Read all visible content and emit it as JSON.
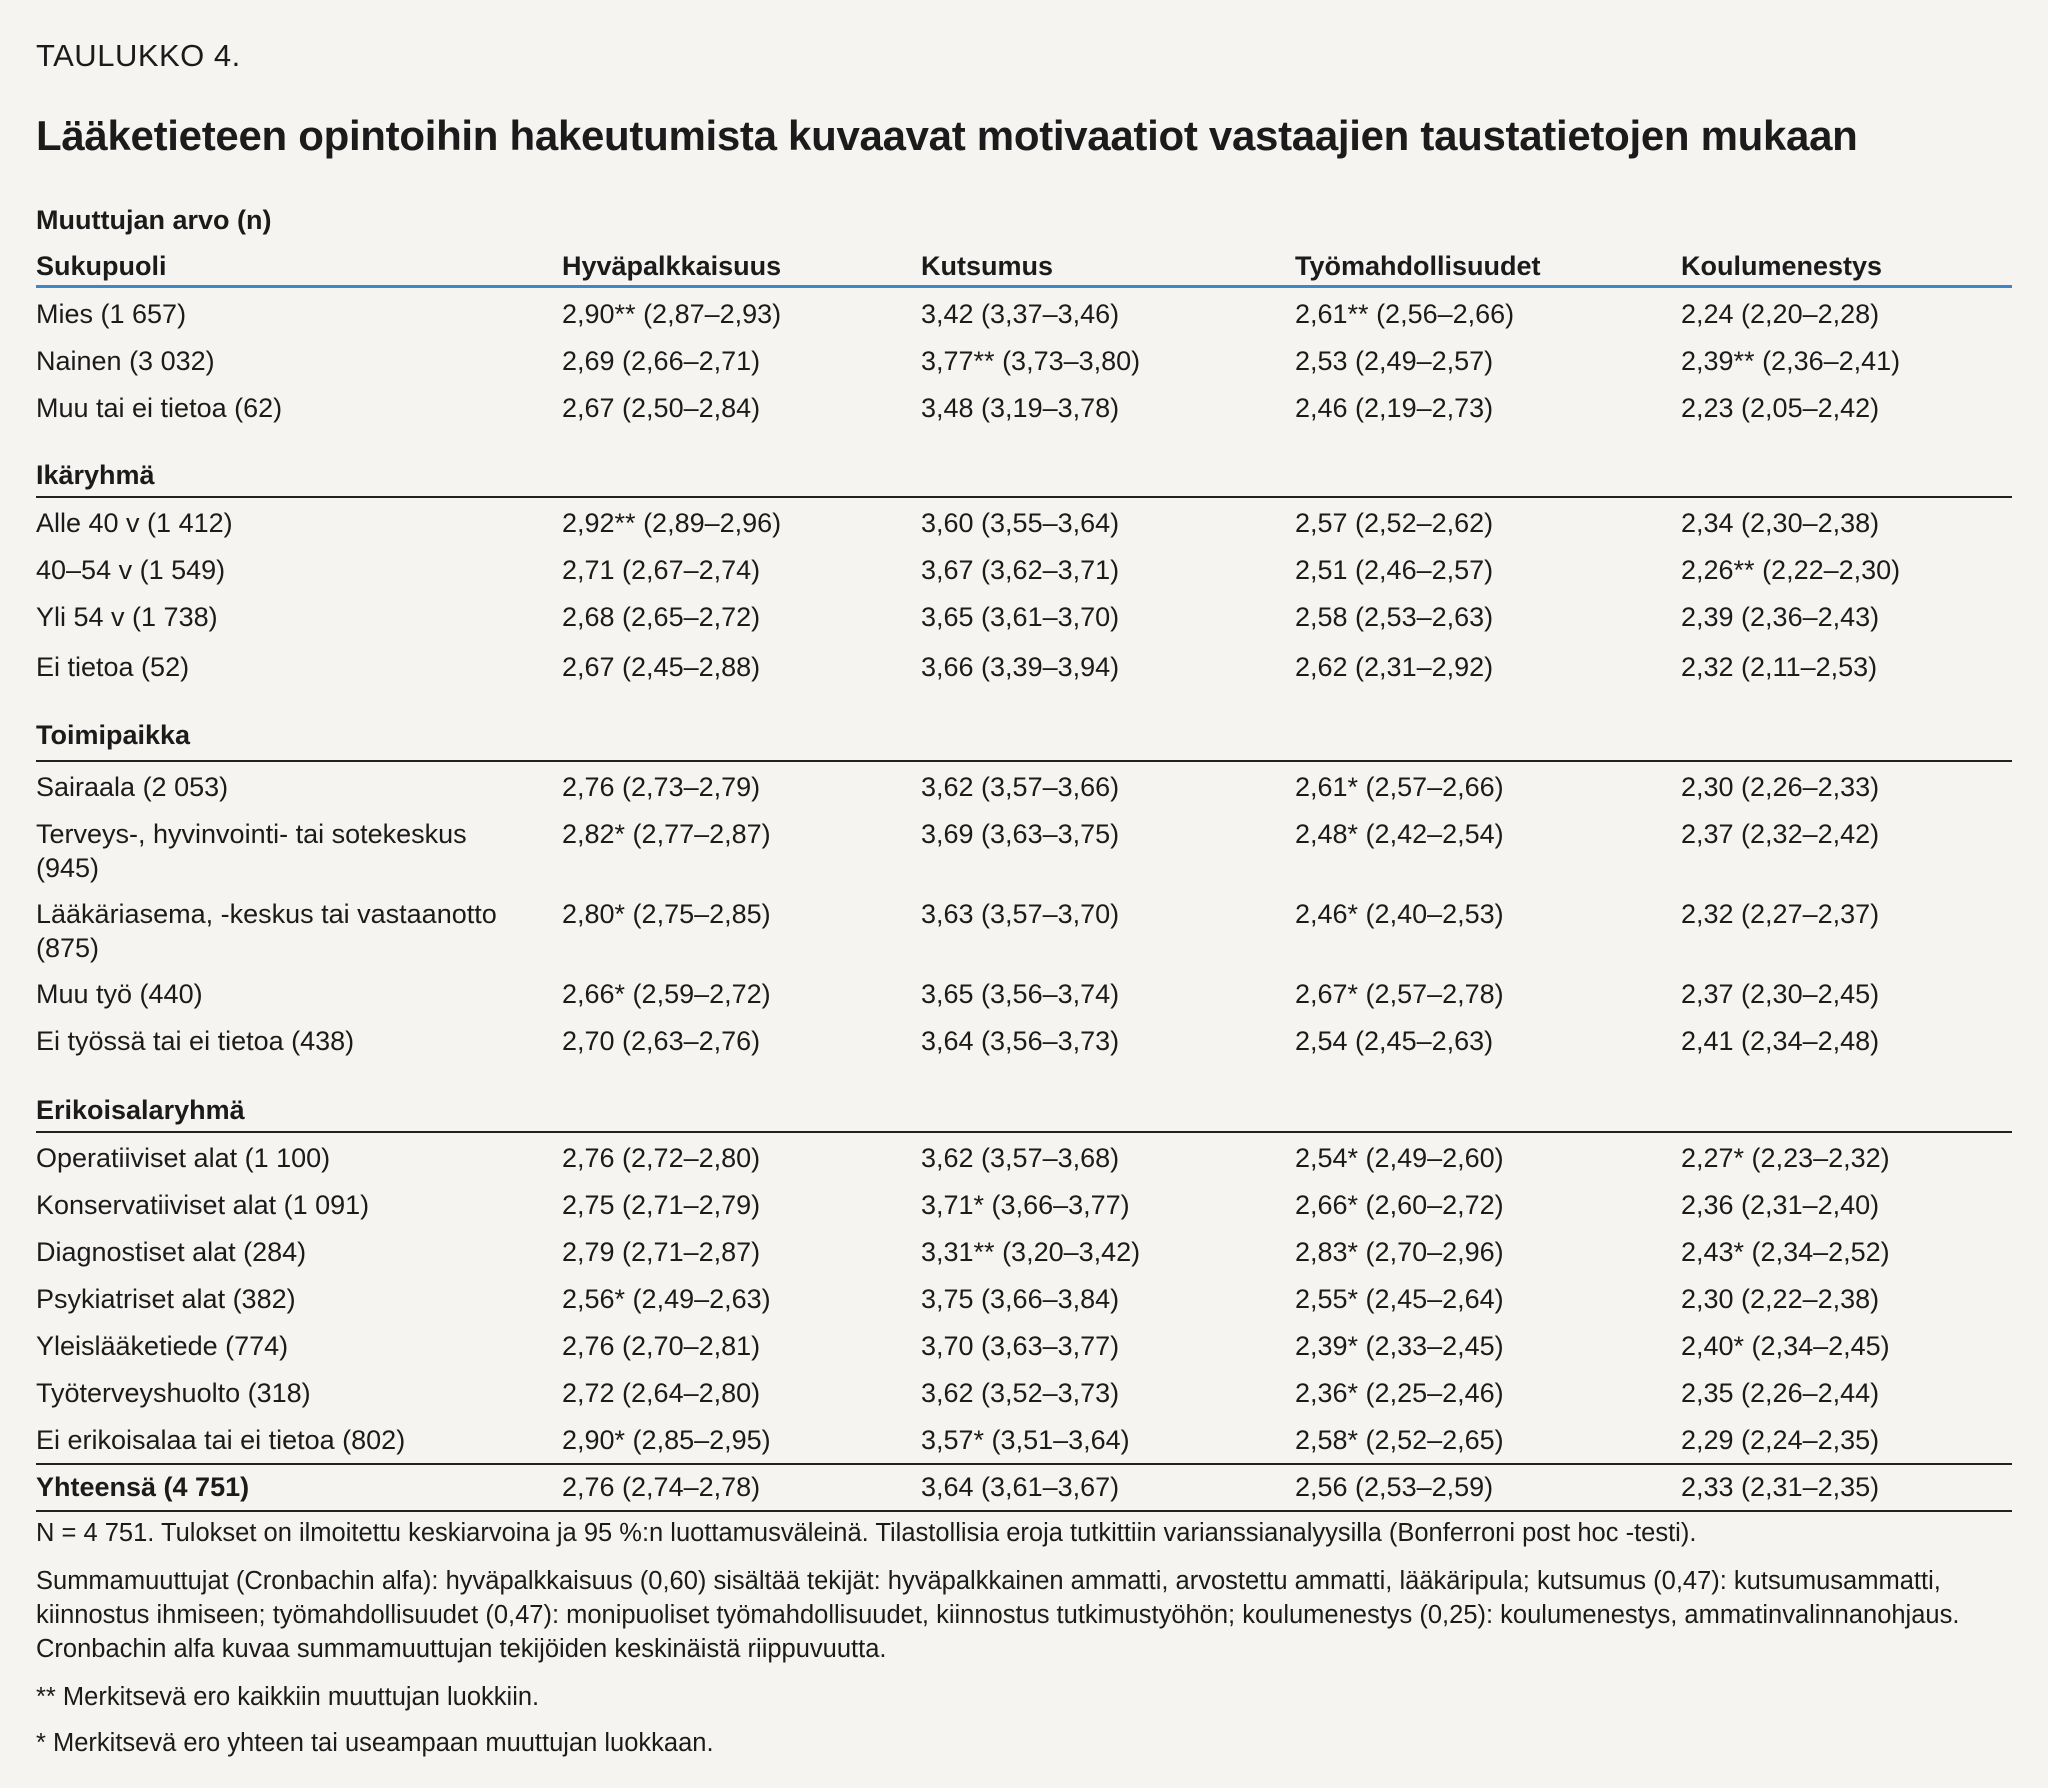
{
  "table_label": "TAULUKKO 4.",
  "title": "Lääketieteen opintoihin hakeutumista kuvaavat motivaatiot vastaajien taustatietojen mukaan",
  "variable_header": "Muuttujan arvo (n)",
  "columns": [
    "Sukupuoli",
    "Hyväpalkkaisuus",
    "Kutsumus",
    "Työmahdollisuudet",
    "Koulumenestys"
  ],
  "groups": [
    {
      "name": "Sukupuoli",
      "rows": [
        [
          "Mies (1 657)",
          "2,90** (2,87–2,93)",
          "3,42 (3,37–3,46)",
          "2,61** (2,56–2,66)",
          "2,24 (2,20–2,28)"
        ],
        [
          "Nainen (3 032)",
          "2,69 (2,66–2,71)",
          "3,77** (3,73–3,80)",
          "2,53 (2,49–2,57)",
          "2,39** (2,36–2,41)"
        ],
        [
          "Muu tai ei tietoa (62)",
          "2,67 (2,50–2,84)",
          "3,48 (3,19–3,78)",
          "2,46 (2,19–2,73)",
          "2,23 (2,05–2,42)"
        ]
      ]
    },
    {
      "name": "Ikäryhmä",
      "rows": [
        [
          "Alle 40 v (1 412)",
          "2,92** (2,89–2,96)",
          "3,60 (3,55–3,64)",
          "2,57 (2,52–2,62)",
          "2,34 (2,30–2,38)"
        ],
        [
          "40–54 v (1 549)",
          "2,71 (2,67–2,74)",
          "3,67 (3,62–3,71)",
          "2,51 (2,46–2,57)",
          "2,26** (2,22–2,30)"
        ],
        [
          "Yli 54 v (1 738)",
          "2,68 (2,65–2,72)",
          "3,65 (3,61–3,70)",
          "2,58 (2,53–2,63)",
          "2,39 (2,36–2,43)"
        ],
        [
          "Ei tietoa (52)",
          "2,67 (2,45–2,88)",
          "3,66 (3,39–3,94)",
          "2,62 (2,31–2,92)",
          "2,32 (2,11–2,53)"
        ]
      ]
    },
    {
      "name": "Toimipaikka",
      "rows": [
        [
          "Sairaala (2 053)",
          "2,76 (2,73–2,79)",
          "3,62 (3,57–3,66)",
          "2,61* (2,57–2,66)",
          "2,30 (2,26–2,33)"
        ],
        [
          "Terveys-, hyvinvointi- tai sotekeskus (945)",
          "2,82* (2,77–2,87)",
          "3,69 (3,63–3,75)",
          "2,48* (2,42–2,54)",
          "2,37 (2,32–2,42)"
        ],
        [
          "Lääkäriasema, -keskus tai vastaanotto (875)",
          "2,80* (2,75–2,85)",
          "3,63 (3,57–3,70)",
          "2,46* (2,40–2,53)",
          "2,32 (2,27–2,37)"
        ],
        [
          "Muu työ (440)",
          "2,66* (2,59–2,72)",
          "3,65 (3,56–3,74)",
          "2,67* (2,57–2,78)",
          "2,37 (2,30–2,45)"
        ],
        [
          "Ei työssä tai ei tietoa (438)",
          "2,70 (2,63–2,76)",
          "3,64 (3,56–3,73)",
          "2,54 (2,45–2,63)",
          "2,41 (2,34–2,48)"
        ]
      ]
    },
    {
      "name": "Erikoisalaryhmä",
      "rows": [
        [
          "Operatiiviset alat (1 100)",
          "2,76 (2,72–2,80)",
          "3,62 (3,57–3,68)",
          "2,54* (2,49–2,60)",
          "2,27* (2,23–2,32)"
        ],
        [
          "Konservatiiviset alat (1 091)",
          "2,75 (2,71–2,79)",
          "3,71* (3,66–3,77)",
          "2,66* (2,60–2,72)",
          "2,36 (2,31–2,40)"
        ],
        [
          "Diagnostiset alat (284)",
          "2,79 (2,71–2,87)",
          "3,31** (3,20–3,42)",
          "2,83* (2,70–2,96)",
          "2,43* (2,34–2,52)"
        ],
        [
          "Psykiatriset alat (382)",
          "2,56* (2,49–2,63)",
          "3,75 (3,66–3,84)",
          "2,55* (2,45–2,64)",
          "2,30 (2,22–2,38)"
        ],
        [
          "Yleislääketiede (774)",
          "2,76 (2,70–2,81)",
          "3,70 (3,63–3,77)",
          "2,39* (2,33–2,45)",
          "2,40* (2,34–2,45)"
        ],
        [
          "Työterveyshuolto (318)",
          "2,72 (2,64–2,80)",
          "3,62 (3,52–3,73)",
          "2,36* (2,25–2,46)",
          "2,35 (2,26–2,44)"
        ],
        [
          "Ei erikoisalaa tai ei tietoa (802)",
          "2,90* (2,85–2,95)",
          "3,57* (3,51–3,64)",
          "2,58* (2,52–2,65)",
          "2,29 (2,24–2,35)"
        ]
      ]
    }
  ],
  "total_row": [
    "Yhteensä (4 751)",
    "2,76 (2,74–2,78)",
    "3,64 (3,61–3,67)",
    "2,56 (2,53–2,59)",
    "2,33 (2,31–2,35)"
  ],
  "notes": [
    "N = 4 751. Tulokset on ilmoitettu keskiarvoina ja 95 %:n luottamusväleinä. Tilastollisia eroja tutkittiin varianssianalyysilla (Bonferroni post hoc -testi).",
    "Summamuuttujat (Cronbachin alfa): hyväpalkkaisuus (0,60) sisältää tekijät: hyväpalkkainen ammatti, arvostettu ammatti, lääkäripula; kutsumus (0,47): kutsumusammatti, kiinnostus ihmiseen; työmahdollisuudet (0,47): monipuoliset työmahdollisuudet, kiinnostus tutkimustyöhön; koulumenestys (0,25): koulumenestys, ammatinvalinnanohjaus. Cronbachin alfa kuvaa summamuuttujan tekijöiden keskinäistä riippuvuutta.",
    "** Merkitsevä ero kaikkiin muuttujan luokkiin.",
    "* Merkitsevä ero yhteen tai useampaan muuttujan luokkaan."
  ],
  "colors": {
    "header_rule": "#3d86c8",
    "rule": "#222222",
    "background": "#f6f4f1"
  }
}
